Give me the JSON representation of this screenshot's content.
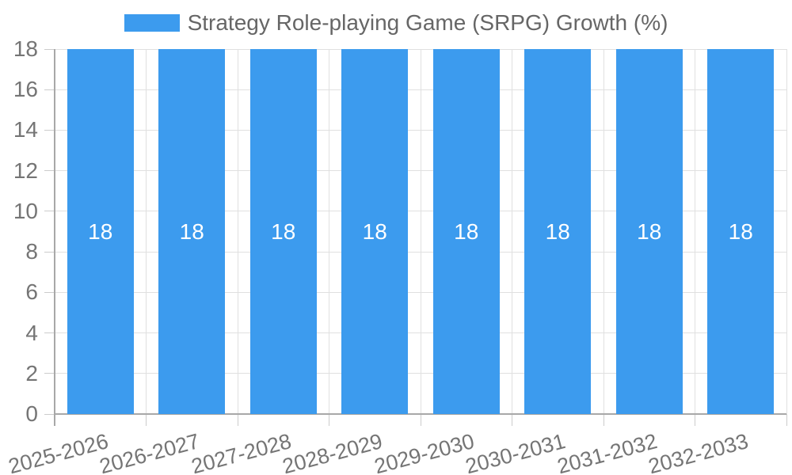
{
  "chart_data": {
    "type": "bar",
    "legend": "Strategy Role-playing Game (SRPG) Growth (%)",
    "categories": [
      "2025-2026",
      "2026-2027",
      "2027-2028",
      "2028-2029",
      "2029-2030",
      "2030-2031",
      "2031-2032",
      "2032-2033"
    ],
    "series": [
      {
        "name": "Strategy Role-playing Game (SRPG) Growth (%)",
        "values": [
          18,
          18,
          18,
          18,
          18,
          18,
          18,
          18
        ]
      }
    ],
    "bar_labels": [
      "18",
      "18",
      "18",
      "18",
      "18",
      "18",
      "18",
      "18"
    ],
    "xlabel": "",
    "ylabel": "",
    "ylim": [
      0,
      18
    ],
    "yticks": [
      0,
      2,
      4,
      6,
      8,
      10,
      12,
      14,
      16,
      18
    ],
    "grid": true,
    "legend_position": "top-center",
    "colors": {
      "bar": "#3C9BEE",
      "bar_label": "#FFFFFF",
      "grid": "#E0E0E0",
      "axis": "#A8A8A8",
      "tick": "#CCCCCC",
      "axis_text": "#757575",
      "legend_text": "#666666",
      "background": "#FFFFFF"
    }
  }
}
